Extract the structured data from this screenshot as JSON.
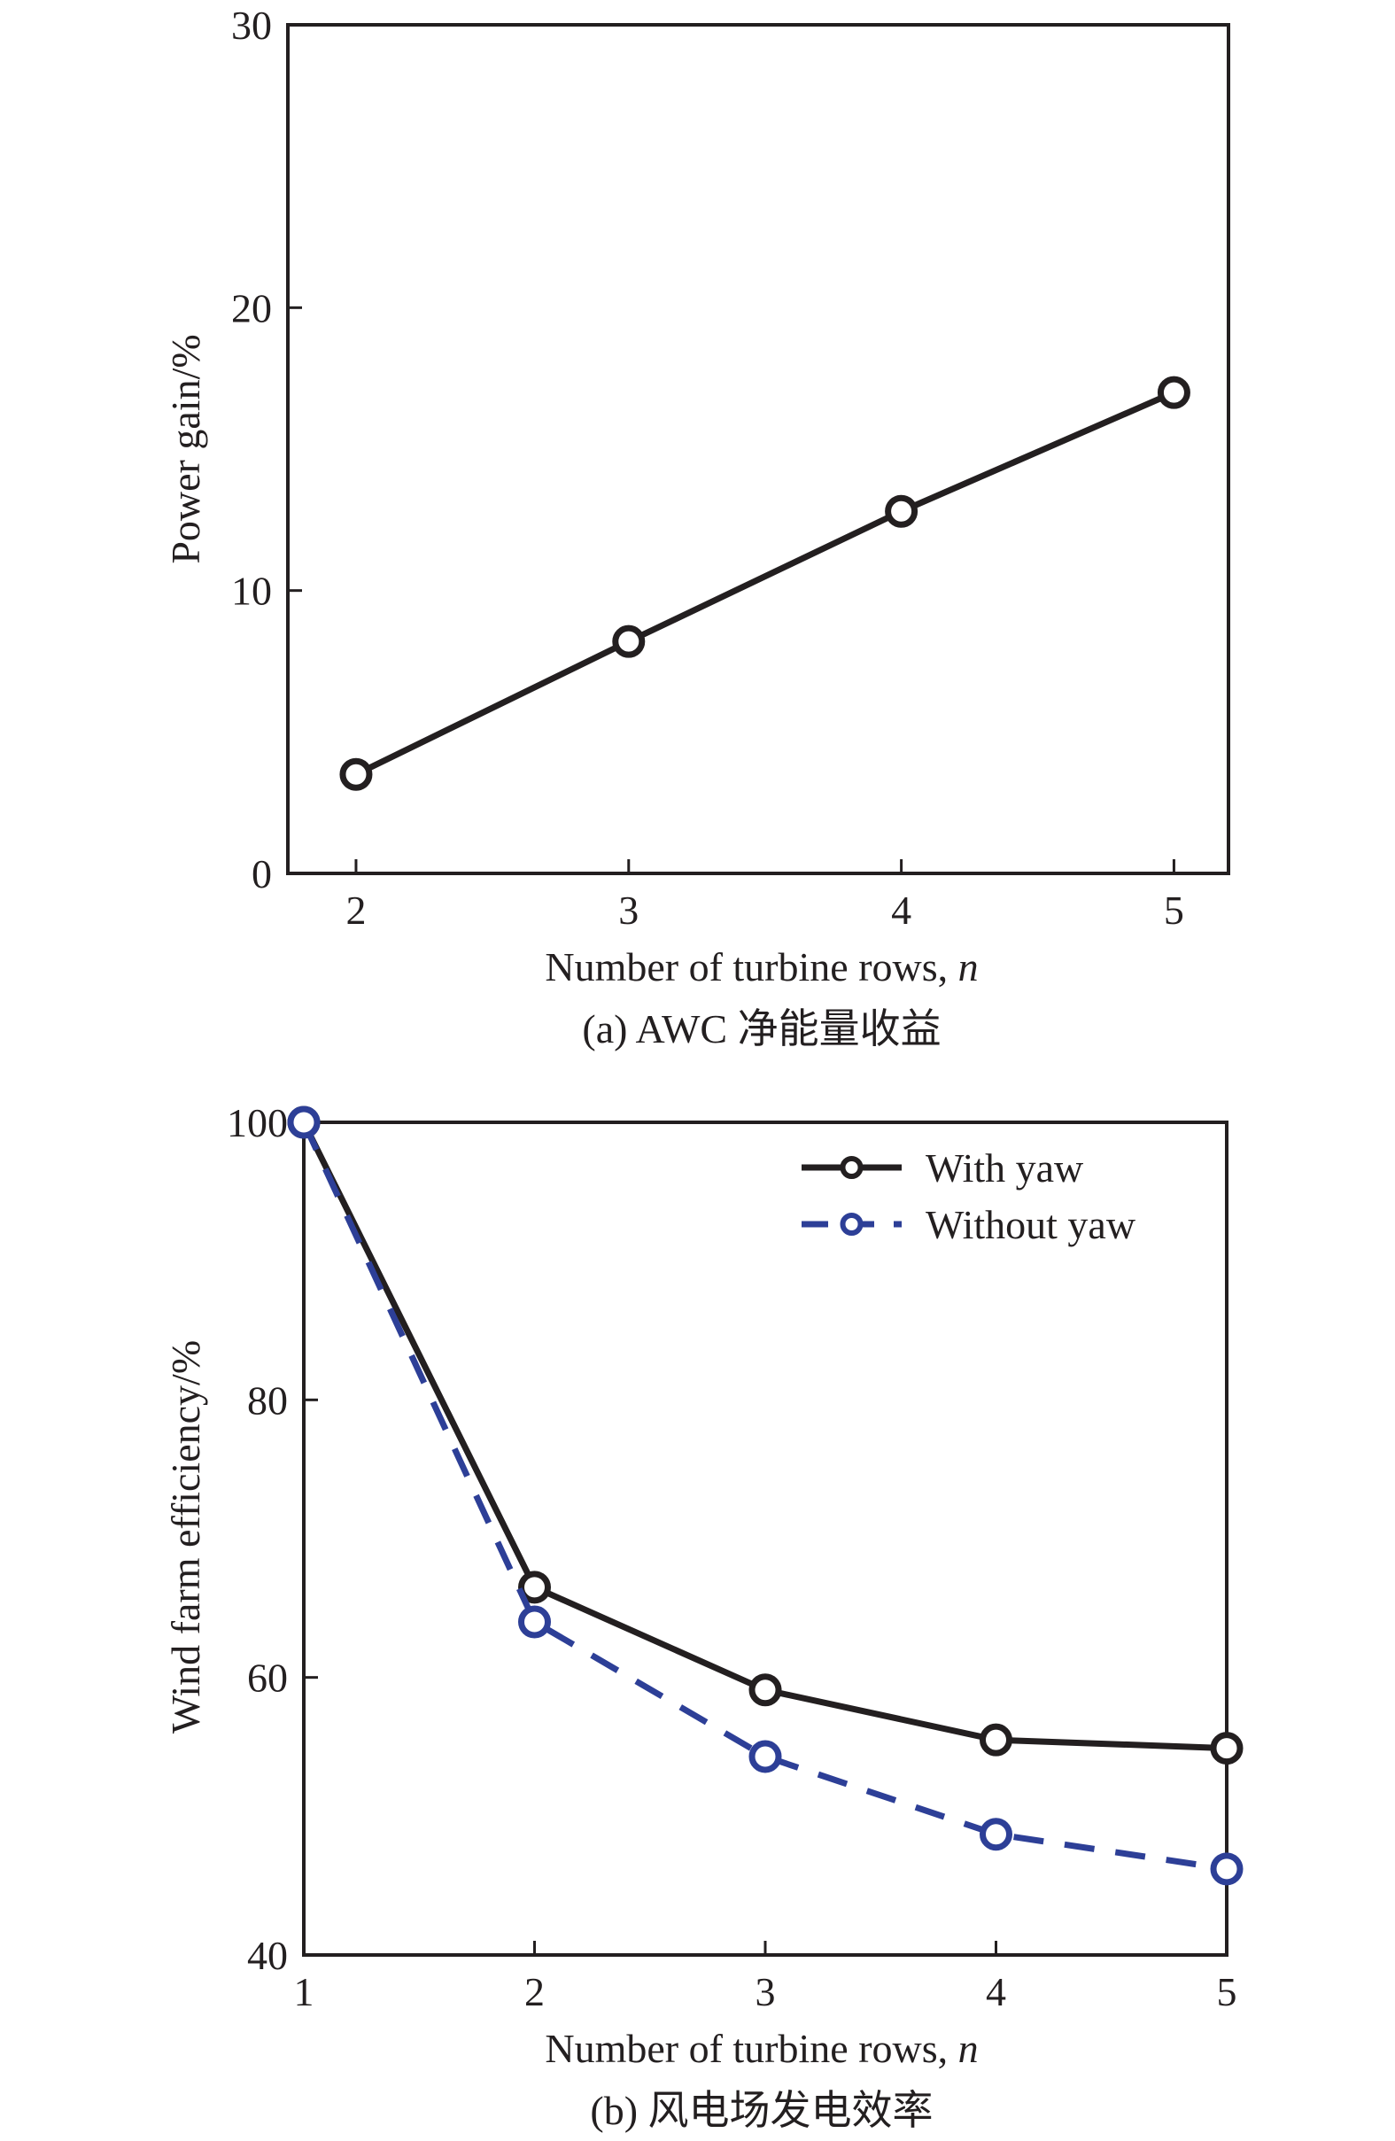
{
  "chart_data": [
    {
      "type": "line",
      "title": "",
      "caption": "(a) AWC 净能量收益",
      "xlabel": "Number of turbine rows, ",
      "xlabel_var": "n",
      "ylabel": "Power gain/%",
      "xlim": [
        1.75,
        5.2
      ],
      "ylim": [
        0,
        30
      ],
      "xticks": [
        2,
        3,
        4,
        5
      ],
      "yticks": [
        0,
        10,
        20,
        30
      ],
      "grid": false,
      "legend": "none",
      "series": [
        {
          "x": [
            2,
            3,
            4,
            5
          ],
          "values": [
            3.5,
            8.2,
            12.8,
            17.0
          ],
          "color": "#231f20",
          "dashed": false,
          "marker": "open-circle"
        }
      ]
    },
    {
      "type": "line",
      "title": "",
      "caption": "(b) 风电场发电效率",
      "xlabel": "Number of turbine rows, ",
      "xlabel_var": "n",
      "ylabel": "Wind farm efficiency/%",
      "xlim": [
        1,
        5
      ],
      "ylim": [
        40,
        100
      ],
      "xticks": [
        1,
        2,
        3,
        4,
        5
      ],
      "yticks": [
        40,
        60,
        80,
        100
      ],
      "grid": false,
      "legend": "top-right",
      "series": [
        {
          "name": "With yaw",
          "x": [
            1,
            2,
            3,
            4,
            5
          ],
          "values": [
            100,
            66.5,
            59.1,
            55.5,
            54.9
          ],
          "color": "#231f20",
          "dashed": false,
          "marker": "open-circle"
        },
        {
          "name": "Without yaw",
          "x": [
            1,
            2,
            3,
            4,
            5
          ],
          "values": [
            100,
            64.0,
            54.3,
            48.7,
            46.2
          ],
          "color": "#2d3f97",
          "dashed": true,
          "marker": "open-circle"
        }
      ]
    }
  ]
}
